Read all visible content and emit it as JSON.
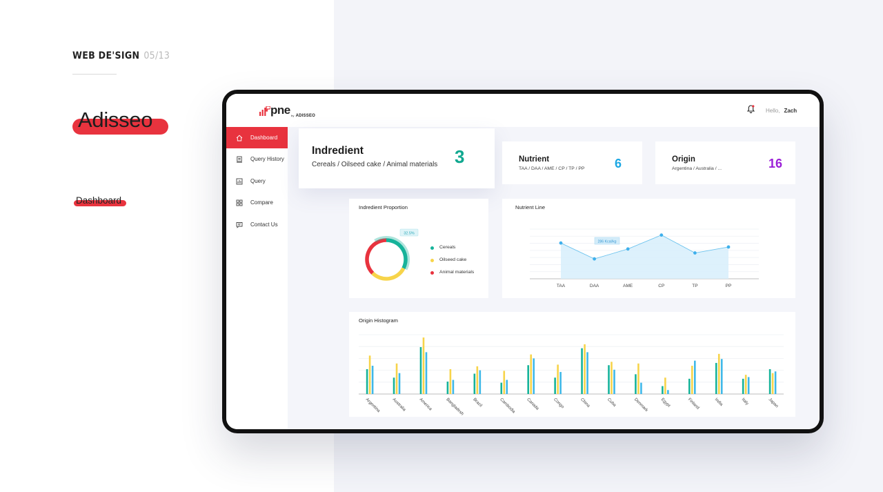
{
  "presentation": {
    "design_tag": "WEB DE'SIGN",
    "page_number": "05/13",
    "brand": "Adisseo",
    "page_label": "Dashboard"
  },
  "app": {
    "logo_text": "pne",
    "logo_by": "by",
    "logo_sub": "ADISSEO",
    "greeting": "Hello,",
    "user": "Zach"
  },
  "sidebar": {
    "items": [
      {
        "label": "Dashboard",
        "icon": "home-icon",
        "active": true
      },
      {
        "label": "Query History",
        "icon": "history-icon"
      },
      {
        "label": "Query",
        "icon": "query-icon"
      },
      {
        "label": "Compare",
        "icon": "compare-icon"
      },
      {
        "label": "Contact Us",
        "icon": "contact-icon"
      }
    ]
  },
  "cards": {
    "ingredient": {
      "title": "Indredient",
      "subtitle": "Cereals / Oilseed cake / Animal materials",
      "count": "3",
      "color": "#11a890"
    },
    "nutrient": {
      "title": "Nutrient",
      "subtitle": "TAA / DAA / AME / CP / TP / PP",
      "count": "6",
      "color": "#1ba7e3"
    },
    "origin": {
      "title": "Origin",
      "subtitle": "Argentina / Australia / ...",
      "count": "16",
      "color": "#9b1fd7"
    }
  },
  "proportion": {
    "title": "Indredient Proportion",
    "tooltip": "32.5%",
    "legend": [
      {
        "label": "Cereals",
        "color": "#16b39a"
      },
      {
        "label": "Oilseed cake",
        "color": "#f7d44a"
      },
      {
        "label": "Animal materials",
        "color": "#e8333e"
      }
    ]
  },
  "nutrient_line": {
    "title": "Nutrient Line",
    "tooltip": "286 Kcal/kg"
  },
  "origin_histogram": {
    "title": "Origin Histogram"
  },
  "chart_data": [
    {
      "type": "pie",
      "title": "Indredient Proportion",
      "categories": [
        "Cereals",
        "Oilseed cake",
        "Animal materials"
      ],
      "values": [
        32.5,
        30,
        37.5
      ],
      "annotations": [
        "32.5%"
      ]
    },
    {
      "type": "area",
      "title": "Nutrient Line",
      "categories": [
        "TAA",
        "DAA",
        "AME",
        "CP",
        "TP",
        "PP"
      ],
      "values": [
        72,
        40,
        60,
        88,
        52,
        64
      ],
      "ylim": [
        0,
        100
      ],
      "annotations": [
        "286 Kcal/kg"
      ]
    },
    {
      "type": "bar",
      "title": "Origin Histogram",
      "categories": [
        "Argentina",
        "Australia",
        "America",
        "Bangladesh",
        "Brazil",
        "Cambodia",
        "Canada",
        "Congo",
        "China",
        "Cuba",
        "Denmark",
        "Egypt",
        "Finland",
        "India",
        "Italy",
        "Japan"
      ],
      "series": [
        {
          "values": [
            44,
            29,
            83,
            22,
            36,
            20,
            51,
            29,
            81,
            51,
            35,
            14,
            27,
            55,
            27,
            44
          ],
          "color": "#16b39a"
        },
        {
          "values": [
            68,
            54,
            100,
            44,
            49,
            41,
            70,
            52,
            88,
            57,
            54,
            29,
            50,
            71,
            34,
            37
          ],
          "color": "#f7d44a"
        },
        {
          "values": [
            50,
            37,
            74,
            25,
            42,
            25,
            63,
            39,
            74,
            43,
            20,
            7,
            59,
            62,
            30,
            40
          ],
          "color": "#3fb8e8"
        }
      ],
      "ylim": [
        0,
        105
      ]
    }
  ]
}
